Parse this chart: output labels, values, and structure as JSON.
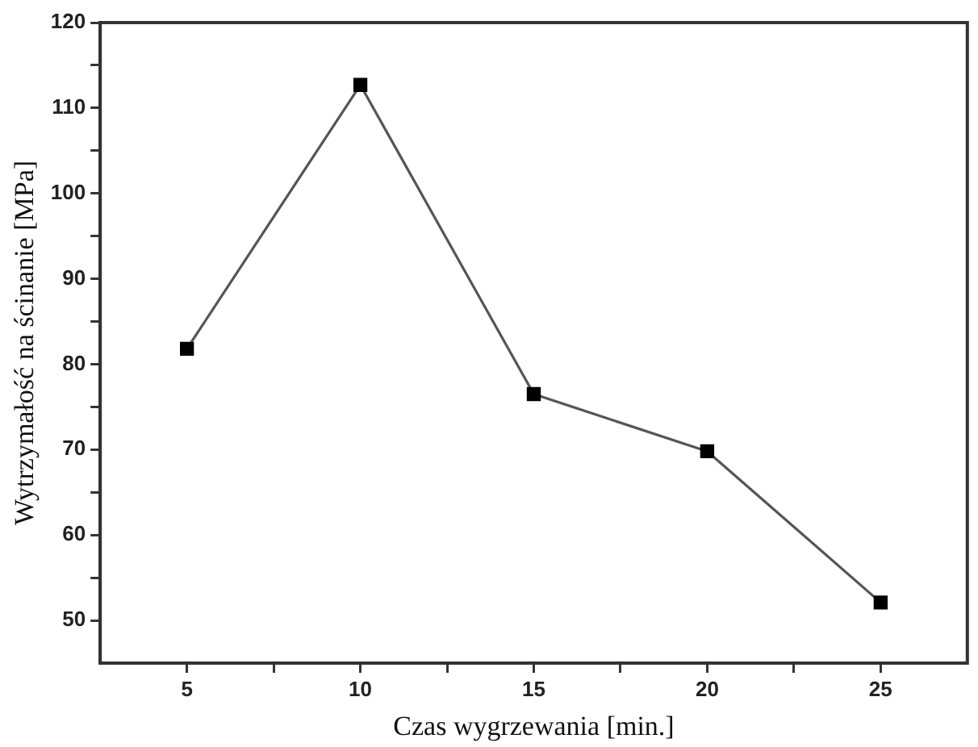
{
  "chart_data": {
    "type": "line",
    "xlabel": "Czas wygrzewania [min.]",
    "ylabel": "Wytrzymałość na ścinanie [MPa]",
    "x": [
      5,
      10,
      15,
      20,
      25
    ],
    "series": [
      {
        "color": "#555555",
        "values": [
          81.8,
          112.7,
          76.5,
          69.8,
          52.1
        ]
      }
    ],
    "xlim": [
      2.5,
      27.5
    ],
    "ylim": [
      45,
      120
    ],
    "xticks": [
      5,
      {
        "value": 7.5,
        "label": null
      },
      10,
      {
        "value": 12.5,
        "label": null
      },
      15,
      {
        "value": 17.5,
        "label": null
      },
      20,
      {
        "value": 22.5,
        "label": null
      },
      25
    ],
    "yticks": [
      50,
      {
        "value": 55,
        "label": null
      },
      60,
      {
        "value": 65,
        "label": null
      },
      70,
      {
        "value": 75,
        "label": null
      },
      80,
      {
        "value": 85,
        "label": null
      },
      90,
      {
        "value": 95,
        "label": null
      },
      100,
      {
        "value": 105,
        "label": null
      },
      110,
      {
        "value": 115,
        "label": null
      },
      120
    ],
    "marker": "square",
    "line_style": "solid",
    "legend": false
  }
}
